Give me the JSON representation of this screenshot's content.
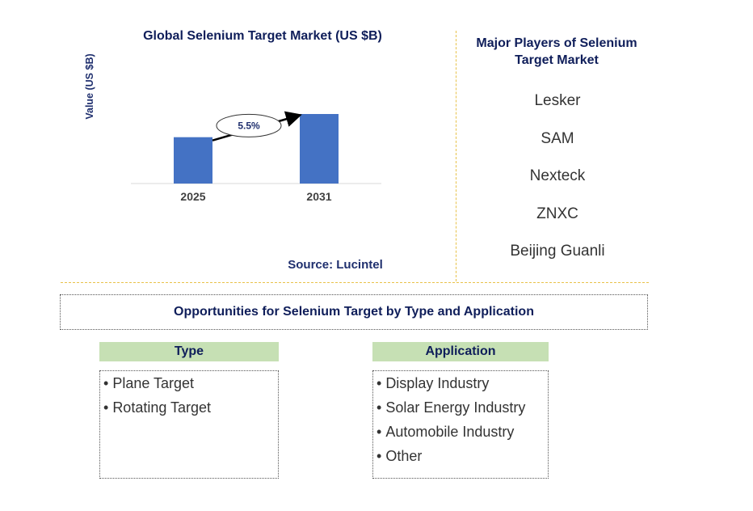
{
  "chart_data": {
    "type": "bar",
    "title": "Global Selenium Target Market (US $B)",
    "ylabel": "Value (US $B)",
    "xlabel": "",
    "categories": [
      "2025",
      "2031"
    ],
    "values": [
      1.0,
      1.5
    ],
    "annotation": "5.5%",
    "bar_color": "#4472c4",
    "grid": false,
    "legend": "none"
  },
  "source": "Source: Lucintel",
  "players": {
    "title": "Major Players of Selenium Target Market",
    "items": [
      "Lesker",
      "SAM",
      "Nexteck",
      "ZNXC",
      "Beijing Guanli"
    ]
  },
  "opportunities": {
    "title": "Opportunities for Selenium Target by Type and Application",
    "type": {
      "header": "Type",
      "items": [
        "Plane Target",
        "Rotating Target"
      ]
    },
    "application": {
      "header": "Application",
      "items": [
        "Display Industry",
        "Solar Energy Industry",
        "Automobile Industry",
        "Other"
      ]
    }
  },
  "colors": {
    "title_navy": "#0f1e5a",
    "divider_gold": "#e8c24a",
    "header_green": "#c6e0b4"
  }
}
